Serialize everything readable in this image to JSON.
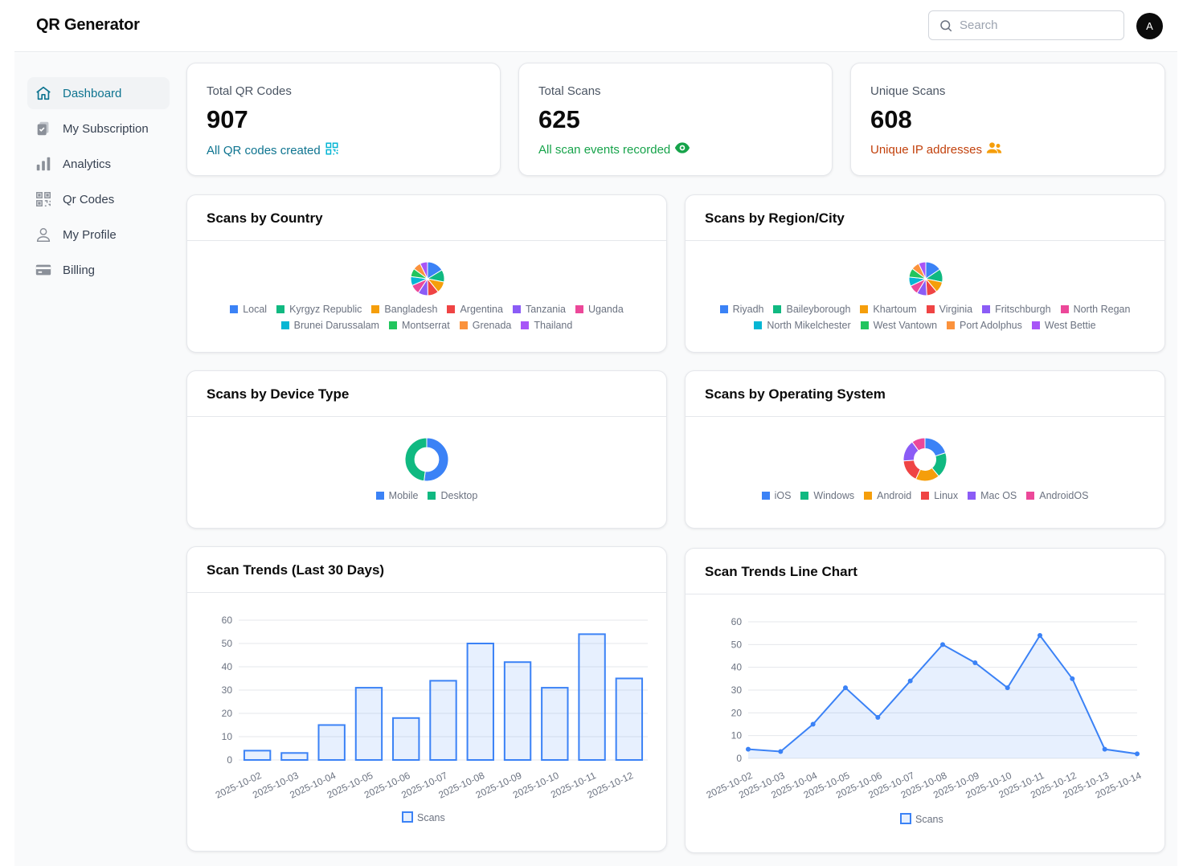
{
  "header": {
    "title": "QR Generator",
    "search_placeholder": "Search",
    "avatar_initial": "A"
  },
  "sidebar": {
    "items": [
      {
        "label": "Dashboard",
        "icon": "home-icon",
        "active": true
      },
      {
        "label": "My Subscription",
        "icon": "subscription-icon"
      },
      {
        "label": "Analytics",
        "icon": "bar-chart-icon"
      },
      {
        "label": "Qr Codes",
        "icon": "qr-code-icon"
      },
      {
        "label": "My Profile",
        "icon": "user-icon"
      },
      {
        "label": "Billing",
        "icon": "credit-card-icon"
      }
    ]
  },
  "stats": [
    {
      "label": "Total QR Codes",
      "value": "907",
      "sub": "All QR codes created",
      "color": "#0e7490",
      "icon": "qr-code-icon"
    },
    {
      "label": "Total Scans",
      "value": "625",
      "sub": "All scan events recorded",
      "color": "#16a34a",
      "icon": "eye-icon"
    },
    {
      "label": "Unique Scans",
      "value": "608",
      "sub": "Unique IP addresses",
      "color": "#c2410c",
      "icon": "users-icon"
    }
  ],
  "colors": {
    "palette": [
      "#3b82f6",
      "#10b981",
      "#f59e0b",
      "#ef4444",
      "#8b5cf6",
      "#ec4899",
      "#06b6d4",
      "#22c55e",
      "#fb923c",
      "#a855f7"
    ],
    "accent": "#0e7490"
  },
  "chart_data": [
    {
      "id": "country",
      "type": "pie",
      "title": "Scans by Country",
      "labels": [
        "Local",
        "Kyrgyz Republic",
        "Bangladesh",
        "Argentina",
        "Tanzania",
        "Uganda",
        "Brunei Darussalam",
        "Montserrat",
        "Grenada",
        "Thailand"
      ],
      "values": [
        85,
        62,
        58,
        55,
        50,
        48,
        45,
        42,
        40,
        38
      ]
    },
    {
      "id": "region",
      "type": "pie",
      "title": "Scans by Region/City",
      "labels": [
        "Riyadh",
        "Baileyborough",
        "Khartoum",
        "Virginia",
        "Fritschburgh",
        "North Regan",
        "North Mikelchester",
        "West Vantown",
        "Port Adolphus",
        "West Bettie"
      ],
      "values": [
        80,
        65,
        55,
        52,
        50,
        47,
        45,
        44,
        40,
        36
      ]
    },
    {
      "id": "device",
      "type": "doughnut",
      "title": "Scans by Device Type",
      "labels": [
        "Mobile",
        "Desktop"
      ],
      "values": [
        52,
        48
      ]
    },
    {
      "id": "os",
      "type": "doughnut",
      "title": "Scans by Operating System",
      "labels": [
        "iOS",
        "Windows",
        "Android",
        "Linux",
        "Mac OS",
        "AndroidOS"
      ],
      "values": [
        20,
        19,
        18,
        17,
        16,
        10
      ]
    },
    {
      "id": "trend-bar",
      "type": "bar",
      "title": "Scan Trends (Last 30 Days)",
      "categories": [
        "2025-10-02",
        "2025-10-03",
        "2025-10-04",
        "2025-10-05",
        "2025-10-06",
        "2025-10-07",
        "2025-10-08",
        "2025-10-09",
        "2025-10-10",
        "2025-10-11",
        "2025-10-12"
      ],
      "values": [
        4,
        3,
        15,
        31,
        18,
        34,
        50,
        42,
        31,
        54,
        35
      ],
      "legend": "Scans",
      "ylim": [
        0,
        60
      ],
      "yticks": [
        0,
        10,
        20,
        30,
        40,
        50,
        60
      ]
    },
    {
      "id": "trend-line",
      "type": "line",
      "title": "Scan Trends Line Chart",
      "categories": [
        "2025-10-02",
        "2025-10-03",
        "2025-10-04",
        "2025-10-05",
        "2025-10-06",
        "2025-10-07",
        "2025-10-08",
        "2025-10-09",
        "2025-10-10",
        "2025-10-11",
        "2025-10-12",
        "2025-10-13",
        "2025-10-14"
      ],
      "values": [
        4,
        3,
        15,
        31,
        18,
        34,
        50,
        42,
        31,
        54,
        35,
        4,
        2
      ],
      "legend": "Scans",
      "ylim": [
        0,
        60
      ],
      "yticks": [
        0,
        10,
        20,
        30,
        40,
        50,
        60
      ]
    }
  ]
}
